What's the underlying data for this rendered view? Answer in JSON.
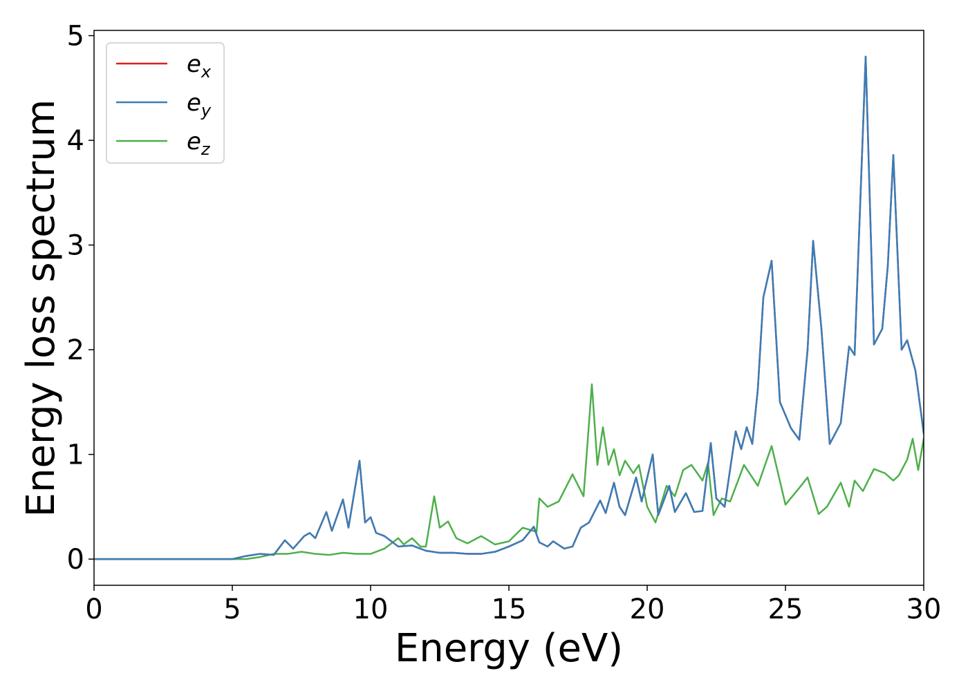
{
  "chart_data": {
    "type": "line",
    "xlabel": "Energy (eV)",
    "ylabel": "Energy loss spectrum",
    "xlim": [
      0,
      30
    ],
    "ylim": [
      -0.25,
      5.05
    ],
    "x_ticks": [
      "0",
      "5",
      "10",
      "15",
      "20",
      "25",
      "30"
    ],
    "y_ticks": [
      "0",
      "1",
      "2",
      "3",
      "4",
      "5"
    ],
    "grid": false,
    "legend_position": "top-left",
    "series": [
      {
        "name": "e_x",
        "legend_base": "e",
        "legend_sub": "x",
        "color": "#e41a1c",
        "note": "identical to e_y (overdrawn)",
        "x": [
          0,
          5,
          5.5,
          6,
          6.5,
          6.9,
          7.2,
          7.6,
          7.8,
          8.0,
          8.4,
          8.6,
          9.0,
          9.2,
          9.6,
          9.8,
          10.0,
          10.2,
          10.5,
          11.0,
          11.5,
          12.0,
          12.5,
          13.0,
          13.5,
          14.0,
          14.5,
          15.0,
          15.5,
          15.9,
          16.1,
          16.4,
          16.6,
          17.0,
          17.3,
          17.6,
          17.9,
          18.3,
          18.5,
          18.8,
          19.0,
          19.2,
          19.6,
          19.8,
          20.2,
          20.4,
          20.8,
          21.0,
          21.4,
          21.7,
          22.0,
          22.3,
          22.5,
          22.8,
          23.2,
          23.4,
          23.6,
          23.8,
          24.0,
          24.2,
          24.5,
          24.8,
          25.2,
          25.5,
          25.8,
          26.0,
          26.3,
          26.6,
          27.0,
          27.3,
          27.5,
          27.9,
          28.2,
          28.5,
          28.7,
          28.9,
          29.2,
          29.4,
          29.7,
          30.0
        ],
        "y": [
          0,
          0,
          0.03,
          0.05,
          0.04,
          0.18,
          0.1,
          0.22,
          0.25,
          0.2,
          0.45,
          0.27,
          0.57,
          0.3,
          0.94,
          0.35,
          0.4,
          0.25,
          0.22,
          0.12,
          0.13,
          0.08,
          0.06,
          0.06,
          0.05,
          0.05,
          0.07,
          0.12,
          0.18,
          0.31,
          0.16,
          0.12,
          0.17,
          0.1,
          0.12,
          0.3,
          0.35,
          0.56,
          0.44,
          0.73,
          0.5,
          0.42,
          0.78,
          0.55,
          1.0,
          0.42,
          0.7,
          0.45,
          0.63,
          0.45,
          0.46,
          1.11,
          0.58,
          0.5,
          1.22,
          1.05,
          1.26,
          1.1,
          1.62,
          2.5,
          2.85,
          1.5,
          1.25,
          1.14,
          2.0,
          3.04,
          2.2,
          1.1,
          1.3,
          2.03,
          1.95,
          4.8,
          2.05,
          2.2,
          2.8,
          3.86,
          2.0,
          2.09,
          1.8,
          1.2
        ]
      },
      {
        "name": "e_y",
        "legend_base": "e",
        "legend_sub": "y",
        "color": "#377eb8",
        "x": [
          0,
          5,
          5.5,
          6,
          6.5,
          6.9,
          7.2,
          7.6,
          7.8,
          8.0,
          8.4,
          8.6,
          9.0,
          9.2,
          9.6,
          9.8,
          10.0,
          10.2,
          10.5,
          11.0,
          11.5,
          12.0,
          12.5,
          13.0,
          13.5,
          14.0,
          14.5,
          15.0,
          15.5,
          15.9,
          16.1,
          16.4,
          16.6,
          17.0,
          17.3,
          17.6,
          17.9,
          18.3,
          18.5,
          18.8,
          19.0,
          19.2,
          19.6,
          19.8,
          20.2,
          20.4,
          20.8,
          21.0,
          21.4,
          21.7,
          22.0,
          22.3,
          22.5,
          22.8,
          23.2,
          23.4,
          23.6,
          23.8,
          24.0,
          24.2,
          24.5,
          24.8,
          25.2,
          25.5,
          25.8,
          26.0,
          26.3,
          26.6,
          27.0,
          27.3,
          27.5,
          27.9,
          28.2,
          28.5,
          28.7,
          28.9,
          29.2,
          29.4,
          29.7,
          30.0
        ],
        "y": [
          0,
          0,
          0.03,
          0.05,
          0.04,
          0.18,
          0.1,
          0.22,
          0.25,
          0.2,
          0.45,
          0.27,
          0.57,
          0.3,
          0.94,
          0.35,
          0.4,
          0.25,
          0.22,
          0.12,
          0.13,
          0.08,
          0.06,
          0.06,
          0.05,
          0.05,
          0.07,
          0.12,
          0.18,
          0.31,
          0.16,
          0.12,
          0.17,
          0.1,
          0.12,
          0.3,
          0.35,
          0.56,
          0.44,
          0.73,
          0.5,
          0.42,
          0.78,
          0.55,
          1.0,
          0.42,
          0.7,
          0.45,
          0.63,
          0.45,
          0.46,
          1.11,
          0.58,
          0.5,
          1.22,
          1.05,
          1.26,
          1.1,
          1.62,
          2.5,
          2.85,
          1.5,
          1.25,
          1.14,
          2.0,
          3.04,
          2.2,
          1.1,
          1.3,
          2.03,
          1.95,
          4.8,
          2.05,
          2.2,
          2.8,
          3.86,
          2.0,
          2.09,
          1.8,
          1.2
        ]
      },
      {
        "name": "e_z",
        "legend_base": "e",
        "legend_sub": "z",
        "color": "#4daf4a",
        "x": [
          0,
          5.5,
          6.0,
          6.5,
          7.0,
          7.5,
          8.0,
          8.5,
          9.0,
          9.5,
          10.0,
          10.5,
          11.0,
          11.2,
          11.5,
          11.8,
          12.0,
          12.3,
          12.5,
          12.8,
          13.1,
          13.5,
          14.0,
          14.5,
          15.0,
          15.5,
          16.0,
          16.1,
          16.4,
          16.8,
          17.3,
          17.7,
          18.0,
          18.2,
          18.4,
          18.6,
          18.8,
          19.0,
          19.2,
          19.5,
          19.7,
          20.0,
          20.3,
          20.7,
          21.0,
          21.3,
          21.6,
          22.0,
          22.2,
          22.4,
          22.7,
          23.0,
          23.5,
          24.0,
          24.5,
          25.0,
          25.5,
          25.8,
          26.2,
          26.5,
          27.0,
          27.3,
          27.5,
          27.8,
          28.2,
          28.6,
          28.9,
          29.1,
          29.4,
          29.6,
          29.8,
          30.0
        ],
        "y": [
          0,
          0,
          0.02,
          0.05,
          0.05,
          0.07,
          0.05,
          0.04,
          0.06,
          0.05,
          0.05,
          0.1,
          0.2,
          0.14,
          0.2,
          0.12,
          0.12,
          0.6,
          0.3,
          0.36,
          0.2,
          0.15,
          0.22,
          0.14,
          0.17,
          0.3,
          0.26,
          0.58,
          0.5,
          0.55,
          0.81,
          0.6,
          1.67,
          0.9,
          1.26,
          0.9,
          1.05,
          0.8,
          0.94,
          0.82,
          0.9,
          0.5,
          0.35,
          0.7,
          0.6,
          0.85,
          0.9,
          0.75,
          0.92,
          0.42,
          0.58,
          0.55,
          0.9,
          0.7,
          1.08,
          0.52,
          0.68,
          0.78,
          0.43,
          0.5,
          0.73,
          0.5,
          0.75,
          0.65,
          0.86,
          0.82,
          0.75,
          0.8,
          0.95,
          1.15,
          0.85,
          1.15
        ]
      }
    ]
  }
}
